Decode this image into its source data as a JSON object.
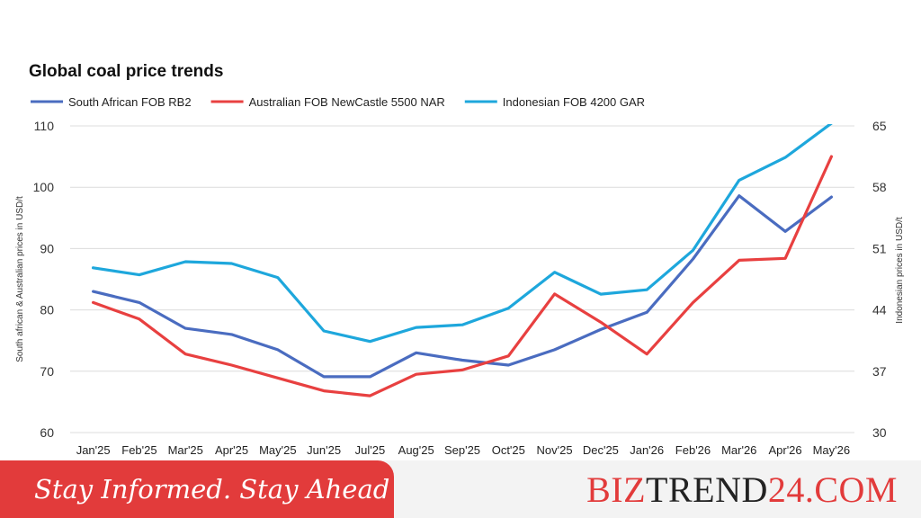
{
  "chart_data": {
    "type": "line",
    "title": "Global coal price trends",
    "categories": [
      "Jan'25",
      "Feb'25",
      "Mar'25",
      "Apr'25",
      "May'25",
      "Jun'25",
      "Jul'25",
      "Aug'25",
      "Sep'25",
      "Oct'25",
      "Nov'25",
      "Dec'25",
      "Jan'26",
      "Feb'26",
      "Mar'26",
      "Apr'26",
      "May'26"
    ],
    "ylabel": "South african & Australian prices in USD/t",
    "y2label": "Indonesian prices in USD/t",
    "ylim": [
      60,
      110
    ],
    "yticks": [
      "60",
      "70",
      "80",
      "90",
      "100",
      "110"
    ],
    "y2lim": [
      30,
      65
    ],
    "y2ticks": [
      "30",
      "37",
      "44",
      "51",
      "58",
      "65"
    ],
    "grid": true,
    "legend_position": "top",
    "series": [
      {
        "name": "South African FOB RB2",
        "axis": "left",
        "color": "#4a6cc0",
        "values": [
          83.0,
          81.2,
          77.0,
          76.0,
          73.5,
          69.1,
          69.1,
          73.0,
          71.8,
          71.0,
          73.5,
          76.8,
          79.6,
          88.3,
          98.6,
          92.8,
          98.4
        ]
      },
      {
        "name": "Australian FOB NewCastle 5500 NAR",
        "axis": "left",
        "color": "#e84040",
        "values": [
          81.2,
          78.5,
          72.8,
          71.0,
          68.9,
          66.8,
          66.0,
          69.5,
          70.2,
          72.5,
          82.6,
          78.0,
          72.8,
          81.2,
          88.1,
          88.4,
          105.0
        ]
      },
      {
        "name": "Indonesian FOB 4200 GAR",
        "axis": "right",
        "color": "#1ea7dc",
        "values": [
          48.8,
          48.0,
          49.5,
          49.3,
          47.7,
          41.6,
          40.4,
          42.0,
          42.3,
          44.2,
          48.3,
          45.8,
          46.3,
          50.8,
          58.8,
          61.4,
          65.3
        ]
      }
    ]
  },
  "footer": {
    "tagline": "Stay Informed. Stay Ahead",
    "brand_part1": "BIZ",
    "brand_part2": "TREND",
    "brand_part3": "24.COM",
    "accent_color": "#e23b3b",
    "dark_color": "#222222"
  }
}
